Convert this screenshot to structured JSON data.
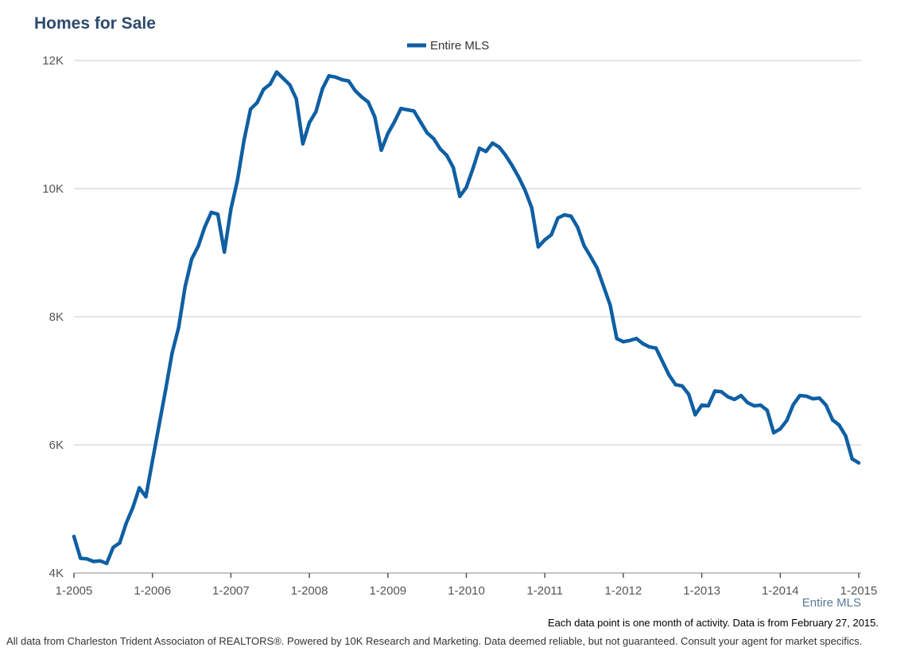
{
  "header": {
    "title": "Homes for Sale"
  },
  "note": "Each data point is one month of activity. Data is from February 27, 2015.",
  "footer": "All data from Charleston Trident Associaton of REALTORS®. Powered by 10K Research and Marketing. Data deemed reliable, but not guaranteed. Consult your agent for market specifics.",
  "colors": {
    "series": "#0f5fa3",
    "grid": "#c8c8c8",
    "axis": "#555555"
  },
  "chart_data": {
    "type": "line",
    "title": "Homes for Sale",
    "xlabel": "",
    "ylabel": "",
    "x_tick_labels": [
      "1-2005",
      "1-2006",
      "1-2007",
      "1-2008",
      "1-2009",
      "1-2010",
      "1-2011",
      "1-2012",
      "1-2013",
      "1-2014",
      "1-2015"
    ],
    "y_ticks": [
      4000,
      6000,
      8000,
      10000,
      12000
    ],
    "y_tick_labels": [
      "4K",
      "6K",
      "8K",
      "10K",
      "12K"
    ],
    "ylim": [
      4000,
      12000
    ],
    "grid": true,
    "legend": {
      "placement": "top-center"
    },
    "series_label": "Entire MLS",
    "series": [
      {
        "name": "Entire MLS",
        "x": [
          "2005-01",
          "2005-02",
          "2005-03",
          "2005-04",
          "2005-05",
          "2005-06",
          "2005-07",
          "2005-08",
          "2005-09",
          "2005-10",
          "2005-11",
          "2005-12",
          "2006-01",
          "2006-02",
          "2006-03",
          "2006-04",
          "2006-05",
          "2006-06",
          "2006-07",
          "2006-08",
          "2006-09",
          "2006-10",
          "2006-11",
          "2006-12",
          "2007-01",
          "2007-02",
          "2007-03",
          "2007-04",
          "2007-05",
          "2007-06",
          "2007-07",
          "2007-08",
          "2007-09",
          "2007-10",
          "2007-11",
          "2007-12",
          "2008-01",
          "2008-02",
          "2008-03",
          "2008-04",
          "2008-05",
          "2008-06",
          "2008-07",
          "2008-08",
          "2008-09",
          "2008-10",
          "2008-11",
          "2008-12",
          "2009-01",
          "2009-02",
          "2009-03",
          "2009-04",
          "2009-05",
          "2009-06",
          "2009-07",
          "2009-08",
          "2009-09",
          "2009-10",
          "2009-11",
          "2009-12",
          "2010-01",
          "2010-02",
          "2010-03",
          "2010-04",
          "2010-05",
          "2010-06",
          "2010-07",
          "2010-08",
          "2010-09",
          "2010-10",
          "2010-11",
          "2010-12",
          "2011-01",
          "2011-02",
          "2011-03",
          "2011-04",
          "2011-05",
          "2011-06",
          "2011-07",
          "2011-08",
          "2011-09",
          "2011-10",
          "2011-11",
          "2011-12",
          "2012-01",
          "2012-02",
          "2012-03",
          "2012-04",
          "2012-05",
          "2012-06",
          "2012-07",
          "2012-08",
          "2012-09",
          "2012-10",
          "2012-11",
          "2012-12",
          "2013-01",
          "2013-02",
          "2013-03",
          "2013-04",
          "2013-05",
          "2013-06",
          "2013-07",
          "2013-08",
          "2013-09",
          "2013-10",
          "2013-11",
          "2013-12",
          "2014-01",
          "2014-02",
          "2014-03",
          "2014-04",
          "2014-05",
          "2014-06",
          "2014-07",
          "2014-08",
          "2014-09",
          "2014-10",
          "2014-11",
          "2014-12",
          "2015-01"
        ],
        "values": [
          4570,
          4230,
          4220,
          4180,
          4190,
          4150,
          4400,
          4470,
          4780,
          5020,
          5330,
          5190,
          5750,
          6300,
          6850,
          7430,
          7830,
          8470,
          8900,
          9100,
          9400,
          9630,
          9600,
          9010,
          9680,
          10130,
          10750,
          11240,
          11340,
          11550,
          11630,
          11820,
          11720,
          11620,
          11400,
          10700,
          11030,
          11200,
          11560,
          11760,
          11740,
          11700,
          11680,
          11530,
          11430,
          11350,
          11120,
          10600,
          10860,
          11040,
          11250,
          11230,
          11210,
          11040,
          10870,
          10780,
          10620,
          10520,
          10330,
          9880,
          10020,
          10310,
          10630,
          10580,
          10710,
          10650,
          10520,
          10360,
          10180,
          9970,
          9700,
          9090,
          9200,
          9280,
          9540,
          9590,
          9570,
          9400,
          9110,
          8940,
          8760,
          8470,
          8180,
          7660,
          7610,
          7630,
          7660,
          7580,
          7530,
          7510,
          7300,
          7090,
          6940,
          6920,
          6790,
          6470,
          6620,
          6610,
          6840,
          6830,
          6750,
          6710,
          6770,
          6660,
          6610,
          6620,
          6540,
          6190,
          6250,
          6380,
          6630,
          6770,
          6760,
          6720,
          6730,
          6620,
          6390,
          6310,
          6140,
          5780,
          5720
        ]
      }
    ]
  }
}
